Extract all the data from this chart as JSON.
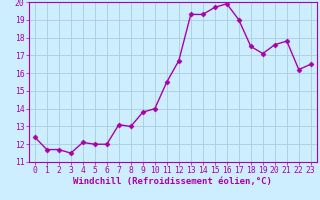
{
  "x": [
    0,
    1,
    2,
    3,
    4,
    5,
    6,
    7,
    8,
    9,
    10,
    11,
    12,
    13,
    14,
    15,
    16,
    17,
    18,
    19,
    20,
    21,
    22,
    23
  ],
  "y": [
    12.4,
    11.7,
    11.7,
    11.5,
    12.1,
    12.0,
    12.0,
    13.1,
    13.0,
    13.8,
    14.0,
    15.5,
    16.7,
    19.3,
    19.3,
    19.7,
    19.9,
    19.0,
    17.5,
    17.1,
    17.6,
    17.8,
    16.2,
    16.5
  ],
  "line_color": "#aa00aa",
  "marker": "D",
  "markersize": 2.5,
  "linewidth": 1.0,
  "xlabel": "Windchill (Refroidissement éolien,°C)",
  "xlabel_fontsize": 6.5,
  "xlim": [
    -0.5,
    23.5
  ],
  "ylim": [
    11,
    20
  ],
  "yticks": [
    11,
    12,
    13,
    14,
    15,
    16,
    17,
    18,
    19,
    20
  ],
  "xticks": [
    0,
    1,
    2,
    3,
    4,
    5,
    6,
    7,
    8,
    9,
    10,
    11,
    12,
    13,
    14,
    15,
    16,
    17,
    18,
    19,
    20,
    21,
    22,
    23
  ],
  "bg_color": "#cceeff",
  "grid_color": "#aaccdd",
  "line_border_color": "#aa00aa",
  "tick_color": "#aa00aa",
  "tick_fontsize": 5.8,
  "spine_color": "#aa00aa"
}
